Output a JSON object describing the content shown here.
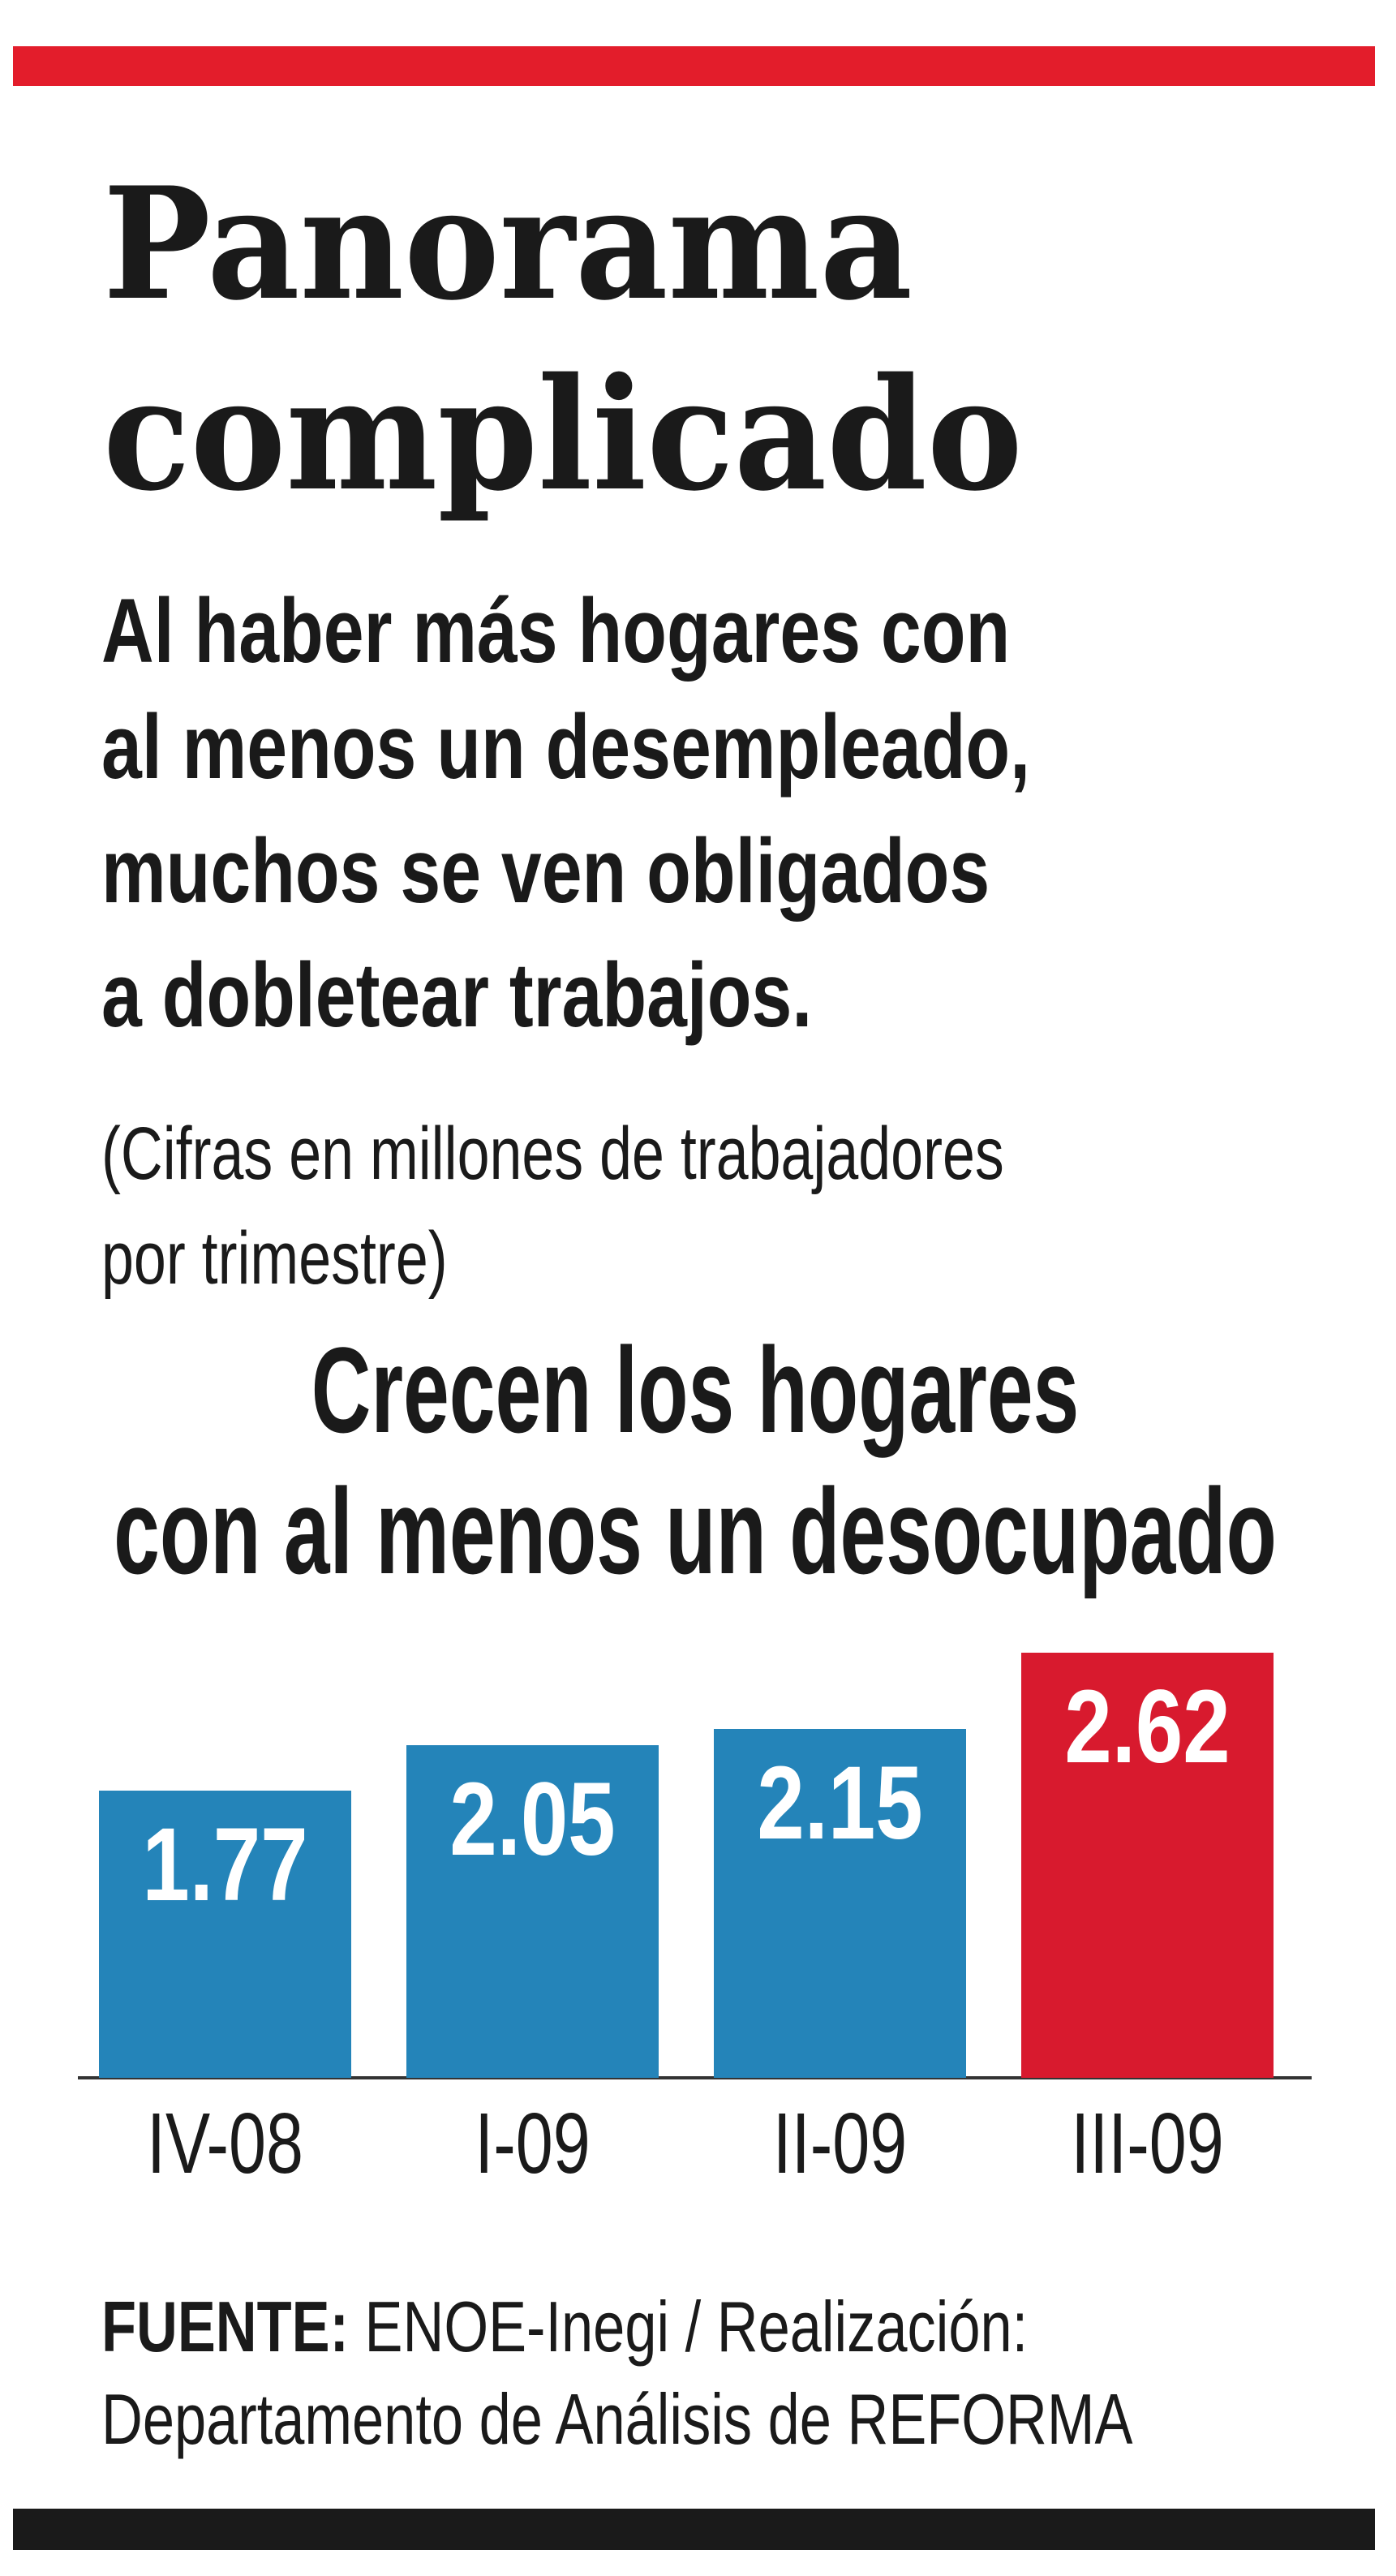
{
  "header": {
    "title": [
      "Panorama",
      "complicado"
    ],
    "subtitle": [
      "Al haber más hogares con",
      "al menos un desempleado,",
      "muchos se ven obligados",
      "a dobletear trabajos."
    ],
    "note": [
      "(Cifras en millones de trabajadores",
      "por trimestre)"
    ]
  },
  "chart_data": {
    "type": "bar",
    "title": [
      "Crecen los hogares",
      "con al menos un desocupado"
    ],
    "categories": [
      "IV-08",
      "I-09",
      "II-09",
      "III-09"
    ],
    "values": [
      1.77,
      2.05,
      2.15,
      2.62
    ],
    "colors": [
      "#2484b9",
      "#2484b9",
      "#2484b9",
      "#d81a2e"
    ]
  },
  "footer": {
    "source_label": "FUENTE:",
    "source": "ENOE-Inegi / Realización:",
    "credit": "Departamento de Análisis de REFORMA"
  }
}
